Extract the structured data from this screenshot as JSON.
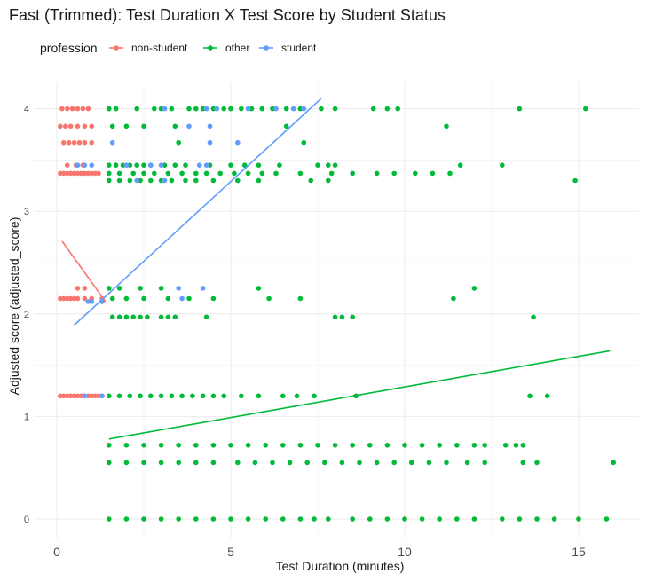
{
  "chart_data": {
    "type": "scatter",
    "title": "Fast (Trimmed): Test Duration X Test Score by Student Status",
    "xlabel": "Test Duration (minutes)",
    "ylabel": "Adjusted score (adjusted_score)",
    "xlim": [
      -0.8,
      16.8
    ],
    "ylim": [
      -0.2,
      4.25
    ],
    "xticks": [
      0,
      5,
      10,
      15
    ],
    "yticks": [
      0,
      1,
      2,
      3,
      4
    ],
    "grid": true,
    "legend": {
      "title": "profession",
      "placement": "top-left"
    },
    "series": [
      {
        "name": "non-student",
        "color": "#F8766D",
        "points": [
          [
            0.15,
            4.0
          ],
          [
            0.3,
            4.0
          ],
          [
            0.45,
            4.0
          ],
          [
            0.6,
            4.0
          ],
          [
            0.75,
            4.0
          ],
          [
            0.9,
            4.0
          ],
          [
            0.1,
            3.83
          ],
          [
            0.25,
            3.83
          ],
          [
            0.4,
            3.83
          ],
          [
            0.6,
            3.83
          ],
          [
            0.8,
            3.83
          ],
          [
            1.0,
            3.83
          ],
          [
            0.2,
            3.67
          ],
          [
            0.35,
            3.67
          ],
          [
            0.5,
            3.67
          ],
          [
            0.65,
            3.67
          ],
          [
            0.8,
            3.67
          ],
          [
            1.0,
            3.67
          ],
          [
            0.1,
            3.37
          ],
          [
            0.2,
            3.37
          ],
          [
            0.3,
            3.37
          ],
          [
            0.4,
            3.37
          ],
          [
            0.5,
            3.37
          ],
          [
            0.6,
            3.37
          ],
          [
            0.7,
            3.37
          ],
          [
            0.8,
            3.37
          ],
          [
            0.9,
            3.37
          ],
          [
            1.0,
            3.37
          ],
          [
            1.1,
            3.37
          ],
          [
            1.2,
            3.37
          ],
          [
            0.3,
            3.45
          ],
          [
            0.55,
            3.45
          ],
          [
            0.75,
            3.45
          ],
          [
            0.1,
            2.15
          ],
          [
            0.2,
            2.15
          ],
          [
            0.3,
            2.15
          ],
          [
            0.4,
            2.15
          ],
          [
            0.5,
            2.15
          ],
          [
            0.6,
            2.15
          ],
          [
            0.8,
            2.15
          ],
          [
            1.0,
            2.15
          ],
          [
            1.3,
            2.15
          ],
          [
            0.6,
            2.25
          ],
          [
            0.8,
            2.25
          ],
          [
            1.3,
            2.12
          ],
          [
            0.1,
            1.2
          ],
          [
            0.2,
            1.2
          ],
          [
            0.3,
            1.2
          ],
          [
            0.4,
            1.2
          ],
          [
            0.5,
            1.2
          ],
          [
            0.6,
            1.2
          ],
          [
            0.7,
            1.2
          ],
          [
            0.8,
            1.2
          ],
          [
            0.9,
            1.2
          ],
          [
            1.0,
            1.2
          ],
          [
            1.1,
            1.2
          ],
          [
            1.2,
            1.2
          ],
          [
            1.3,
            1.2
          ]
        ],
        "fit": [
          [
            0.15,
            2.71
          ],
          [
            1.4,
            2.12
          ]
        ]
      },
      {
        "name": "other",
        "color": "#00BA38",
        "points": [
          [
            1.5,
            4.0
          ],
          [
            1.7,
            4.0
          ],
          [
            2.3,
            4.0
          ],
          [
            2.8,
            4.0
          ],
          [
            3.0,
            4.0
          ],
          [
            3.3,
            4.0
          ],
          [
            3.8,
            4.0
          ],
          [
            4.0,
            4.0
          ],
          [
            4.2,
            4.0
          ],
          [
            4.5,
            4.0
          ],
          [
            4.8,
            4.0
          ],
          [
            5.0,
            4.0
          ],
          [
            5.3,
            4.0
          ],
          [
            5.6,
            4.0
          ],
          [
            5.9,
            4.0
          ],
          [
            6.2,
            4.0
          ],
          [
            6.6,
            4.0
          ],
          [
            7.0,
            4.0
          ],
          [
            7.6,
            4.0
          ],
          [
            8.0,
            4.0
          ],
          [
            9.1,
            4.0
          ],
          [
            9.5,
            4.0
          ],
          [
            9.8,
            4.0
          ],
          [
            13.3,
            4.0
          ],
          [
            15.2,
            4.0
          ],
          [
            1.6,
            3.83
          ],
          [
            2.0,
            3.83
          ],
          [
            2.5,
            3.83
          ],
          [
            3.4,
            3.83
          ],
          [
            6.6,
            3.83
          ],
          [
            11.2,
            3.83
          ],
          [
            3.5,
            3.67
          ],
          [
            7.1,
            3.67
          ],
          [
            1.5,
            3.45
          ],
          [
            1.7,
            3.45
          ],
          [
            1.9,
            3.45
          ],
          [
            2.1,
            3.45
          ],
          [
            2.3,
            3.45
          ],
          [
            2.5,
            3.45
          ],
          [
            2.7,
            3.45
          ],
          [
            3.1,
            3.45
          ],
          [
            3.4,
            3.45
          ],
          [
            3.7,
            3.45
          ],
          [
            4.4,
            3.45
          ],
          [
            5.0,
            3.45
          ],
          [
            5.4,
            3.45
          ],
          [
            5.8,
            3.45
          ],
          [
            6.4,
            3.45
          ],
          [
            7.5,
            3.45
          ],
          [
            7.8,
            3.45
          ],
          [
            8.0,
            3.45
          ],
          [
            11.6,
            3.45
          ],
          [
            12.8,
            3.45
          ],
          [
            1.5,
            3.37
          ],
          [
            1.8,
            3.37
          ],
          [
            2.2,
            3.37
          ],
          [
            2.5,
            3.37
          ],
          [
            2.8,
            3.37
          ],
          [
            3.2,
            3.37
          ],
          [
            3.6,
            3.37
          ],
          [
            4.0,
            3.37
          ],
          [
            4.3,
            3.37
          ],
          [
            4.7,
            3.37
          ],
          [
            5.1,
            3.37
          ],
          [
            5.5,
            3.37
          ],
          [
            5.9,
            3.37
          ],
          [
            6.3,
            3.37
          ],
          [
            7.0,
            3.37
          ],
          [
            7.9,
            3.37
          ],
          [
            8.5,
            3.37
          ],
          [
            9.2,
            3.37
          ],
          [
            9.7,
            3.37
          ],
          [
            10.3,
            3.37
          ],
          [
            10.8,
            3.37
          ],
          [
            11.3,
            3.37
          ],
          [
            1.5,
            3.3
          ],
          [
            1.8,
            3.3
          ],
          [
            2.1,
            3.3
          ],
          [
            2.4,
            3.3
          ],
          [
            2.7,
            3.3
          ],
          [
            3.0,
            3.3
          ],
          [
            3.3,
            3.3
          ],
          [
            3.7,
            3.3
          ],
          [
            4.0,
            3.3
          ],
          [
            4.5,
            3.3
          ],
          [
            5.2,
            3.3
          ],
          [
            5.8,
            3.3
          ],
          [
            7.3,
            3.3
          ],
          [
            7.8,
            3.3
          ],
          [
            14.9,
            3.3
          ],
          [
            1.5,
            2.25
          ],
          [
            1.8,
            2.25
          ],
          [
            2.4,
            2.25
          ],
          [
            3.0,
            2.25
          ],
          [
            5.8,
            2.25
          ],
          [
            12.0,
            2.25
          ],
          [
            1.6,
            2.15
          ],
          [
            2.0,
            2.15
          ],
          [
            2.5,
            2.15
          ],
          [
            3.2,
            2.15
          ],
          [
            3.8,
            2.15
          ],
          [
            4.5,
            2.15
          ],
          [
            6.1,
            2.15
          ],
          [
            7.0,
            2.15
          ],
          [
            11.4,
            2.15
          ],
          [
            1.6,
            1.97
          ],
          [
            1.8,
            1.97
          ],
          [
            2.0,
            1.97
          ],
          [
            2.2,
            1.97
          ],
          [
            2.4,
            1.97
          ],
          [
            2.6,
            1.97
          ],
          [
            3.0,
            1.97
          ],
          [
            3.2,
            1.97
          ],
          [
            3.4,
            1.97
          ],
          [
            4.3,
            1.97
          ],
          [
            8.0,
            1.97
          ],
          [
            8.2,
            1.97
          ],
          [
            8.5,
            1.97
          ],
          [
            13.7,
            1.97
          ],
          [
            1.5,
            1.2
          ],
          [
            1.8,
            1.2
          ],
          [
            2.1,
            1.2
          ],
          [
            2.4,
            1.2
          ],
          [
            2.7,
            1.2
          ],
          [
            3.0,
            1.2
          ],
          [
            3.3,
            1.2
          ],
          [
            3.6,
            1.2
          ],
          [
            3.9,
            1.2
          ],
          [
            4.2,
            1.2
          ],
          [
            4.5,
            1.2
          ],
          [
            4.8,
            1.2
          ],
          [
            5.3,
            1.2
          ],
          [
            5.8,
            1.2
          ],
          [
            6.5,
            1.2
          ],
          [
            6.9,
            1.2
          ],
          [
            7.4,
            1.2
          ],
          [
            8.6,
            1.2
          ],
          [
            13.6,
            1.2
          ],
          [
            14.1,
            1.2
          ],
          [
            1.5,
            0.72
          ],
          [
            2.0,
            0.72
          ],
          [
            2.5,
            0.72
          ],
          [
            3.0,
            0.72
          ],
          [
            3.5,
            0.72
          ],
          [
            4.0,
            0.72
          ],
          [
            4.5,
            0.72
          ],
          [
            5.0,
            0.72
          ],
          [
            5.5,
            0.72
          ],
          [
            6.0,
            0.72
          ],
          [
            6.5,
            0.72
          ],
          [
            7.0,
            0.72
          ],
          [
            7.5,
            0.72
          ],
          [
            8.0,
            0.72
          ],
          [
            8.5,
            0.72
          ],
          [
            9.0,
            0.72
          ],
          [
            9.5,
            0.72
          ],
          [
            10.0,
            0.72
          ],
          [
            10.5,
            0.72
          ],
          [
            11.0,
            0.72
          ],
          [
            11.5,
            0.72
          ],
          [
            12.0,
            0.72
          ],
          [
            12.3,
            0.72
          ],
          [
            12.9,
            0.72
          ],
          [
            13.2,
            0.72
          ],
          [
            13.4,
            0.72
          ],
          [
            1.5,
            0.55
          ],
          [
            2.0,
            0.55
          ],
          [
            2.5,
            0.55
          ],
          [
            3.0,
            0.55
          ],
          [
            3.5,
            0.55
          ],
          [
            4.0,
            0.55
          ],
          [
            4.5,
            0.55
          ],
          [
            5.2,
            0.55
          ],
          [
            5.7,
            0.55
          ],
          [
            6.2,
            0.55
          ],
          [
            6.7,
            0.55
          ],
          [
            7.2,
            0.55
          ],
          [
            7.7,
            0.55
          ],
          [
            8.2,
            0.55
          ],
          [
            8.7,
            0.55
          ],
          [
            9.2,
            0.55
          ],
          [
            9.7,
            0.55
          ],
          [
            10.2,
            0.55
          ],
          [
            10.7,
            0.55
          ],
          [
            11.2,
            0.55
          ],
          [
            11.8,
            0.55
          ],
          [
            12.3,
            0.55
          ],
          [
            13.4,
            0.55
          ],
          [
            13.8,
            0.55
          ],
          [
            16.0,
            0.55
          ],
          [
            1.5,
            0.0
          ],
          [
            2.0,
            0.0
          ],
          [
            2.5,
            0.0
          ],
          [
            3.0,
            0.0
          ],
          [
            3.5,
            0.0
          ],
          [
            4.0,
            0.0
          ],
          [
            4.5,
            0.0
          ],
          [
            5.0,
            0.0
          ],
          [
            5.5,
            0.0
          ],
          [
            6.0,
            0.0
          ],
          [
            6.5,
            0.0
          ],
          [
            7.0,
            0.0
          ],
          [
            7.4,
            0.0
          ],
          [
            7.8,
            0.0
          ],
          [
            8.5,
            0.0
          ],
          [
            9.0,
            0.0
          ],
          [
            9.5,
            0.0
          ],
          [
            10.0,
            0.0
          ],
          [
            10.5,
            0.0
          ],
          [
            11.0,
            0.0
          ],
          [
            11.5,
            0.0
          ],
          [
            12.0,
            0.0
          ],
          [
            12.8,
            0.0
          ],
          [
            13.3,
            0.0
          ],
          [
            13.8,
            0.0
          ],
          [
            14.3,
            0.0
          ],
          [
            15.0,
            0.0
          ],
          [
            15.8,
            0.0
          ]
        ],
        "fit": [
          [
            1.5,
            0.78
          ],
          [
            15.9,
            1.64
          ]
        ]
      },
      {
        "name": "student",
        "color": "#619CFF",
        "points": [
          [
            3.1,
            4.0
          ],
          [
            4.3,
            4.0
          ],
          [
            4.6,
            4.0
          ],
          [
            5.5,
            4.0
          ],
          [
            6.3,
            4.0
          ],
          [
            6.8,
            4.0
          ],
          [
            7.1,
            4.0
          ],
          [
            3.8,
            3.83
          ],
          [
            4.4,
            3.83
          ],
          [
            1.6,
            3.67
          ],
          [
            4.4,
            3.67
          ],
          [
            5.2,
            3.67
          ],
          [
            0.6,
            3.45
          ],
          [
            0.8,
            3.45
          ],
          [
            1.0,
            3.45
          ],
          [
            2.0,
            3.45
          ],
          [
            2.7,
            3.45
          ],
          [
            3.0,
            3.45
          ],
          [
            4.1,
            3.45
          ],
          [
            4.3,
            3.45
          ],
          [
            2.3,
            3.3
          ],
          [
            3.1,
            3.3
          ],
          [
            3.5,
            2.25
          ],
          [
            4.2,
            2.25
          ],
          [
            0.9,
            2.12
          ],
          [
            1.0,
            2.12
          ],
          [
            1.3,
            2.12
          ],
          [
            3.6,
            2.15
          ],
          [
            0.8,
            1.2
          ],
          [
            1.3,
            1.2
          ]
        ],
        "fit": [
          [
            0.5,
            1.89
          ],
          [
            7.6,
            4.1
          ]
        ]
      }
    ]
  }
}
